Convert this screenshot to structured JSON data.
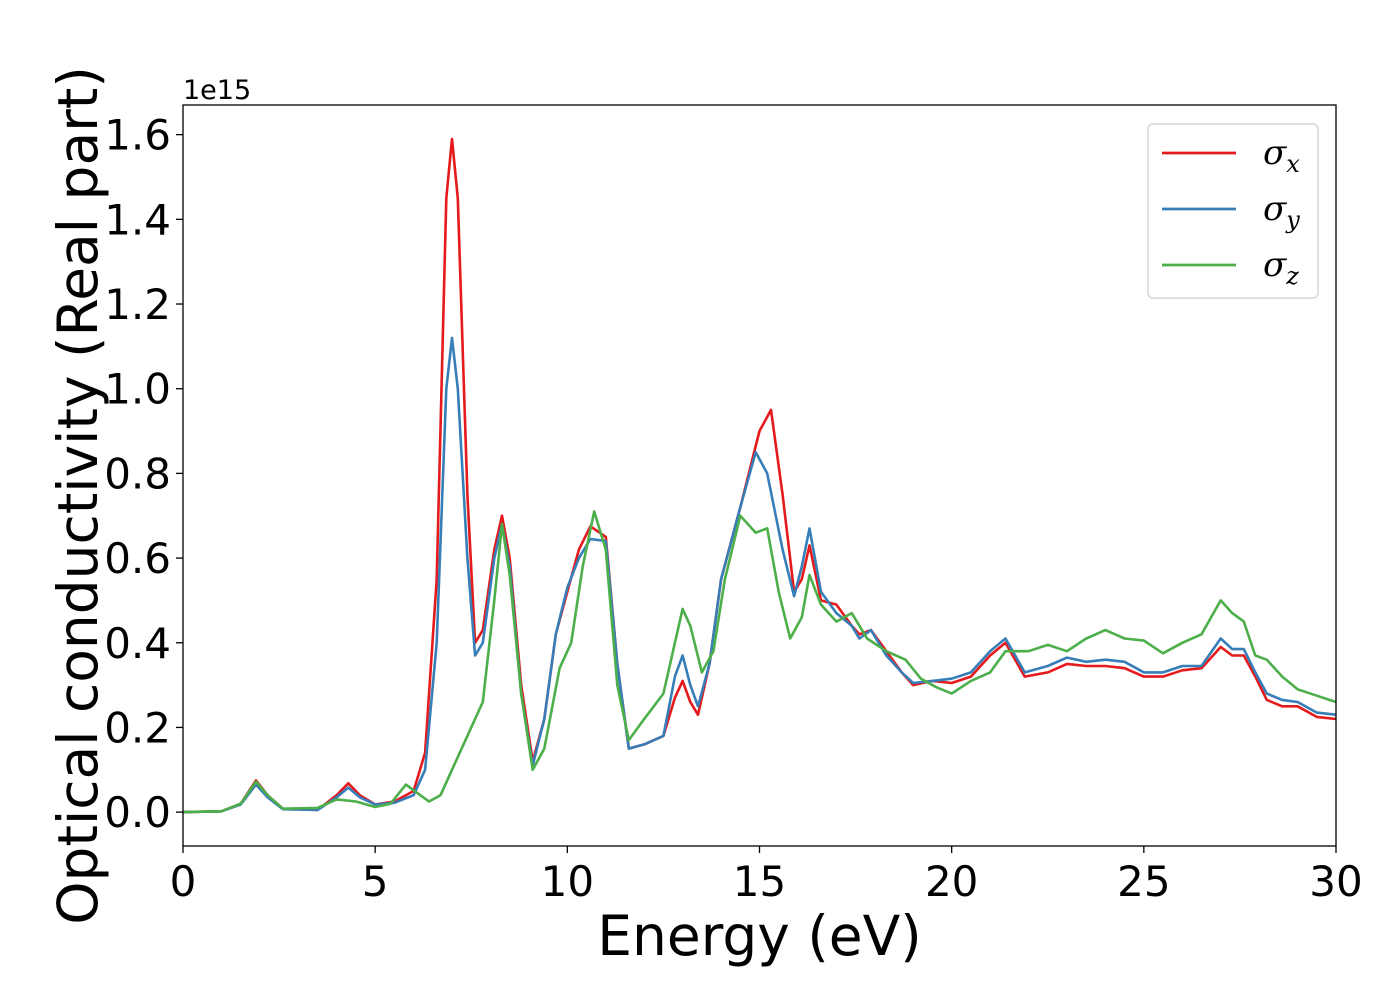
{
  "chart_data": {
    "type": "line",
    "xlabel": "Energy (eV)",
    "ylabel": "Optical conductivity (Real part)",
    "y_offset_text": "1e15",
    "y_multiplier": 1000000000000000.0,
    "xlim": [
      0,
      30
    ],
    "ylim": [
      -0.08,
      1.67
    ],
    "x_ticks": [
      0,
      5,
      10,
      15,
      20,
      25,
      30
    ],
    "x_tick_labels": [
      "0",
      "5",
      "10",
      "15",
      "20",
      "25",
      "30"
    ],
    "y_ticks": [
      0.0,
      0.2,
      0.4,
      0.6,
      0.8,
      1.0,
      1.2,
      1.4,
      1.6
    ],
    "y_tick_labels": [
      "0.0",
      "0.2",
      "0.4",
      "0.6",
      "0.8",
      "1.0",
      "1.2",
      "1.4",
      "1.6"
    ],
    "grid": false,
    "legend_position": "top-right",
    "series": [
      {
        "name": "σx",
        "symbol": "σ",
        "subscript": "x",
        "color": "#e41a1c",
        "points": [
          [
            0,
            0
          ],
          [
            1,
            0.002
          ],
          [
            1.5,
            0.02
          ],
          [
            1.9,
            0.075
          ],
          [
            2.2,
            0.04
          ],
          [
            2.6,
            0.008
          ],
          [
            3.5,
            0.005
          ],
          [
            4.0,
            0.04
          ],
          [
            4.3,
            0.068
          ],
          [
            4.6,
            0.04
          ],
          [
            5.0,
            0.018
          ],
          [
            5.5,
            0.025
          ],
          [
            6.0,
            0.05
          ],
          [
            6.3,
            0.14
          ],
          [
            6.6,
            0.55
          ],
          [
            6.85,
            1.45
          ],
          [
            7.0,
            1.59
          ],
          [
            7.15,
            1.45
          ],
          [
            7.4,
            0.75
          ],
          [
            7.6,
            0.4
          ],
          [
            7.8,
            0.43
          ],
          [
            8.1,
            0.62
          ],
          [
            8.3,
            0.7
          ],
          [
            8.5,
            0.6
          ],
          [
            8.8,
            0.3
          ],
          [
            9.1,
            0.12
          ],
          [
            9.4,
            0.22
          ],
          [
            9.7,
            0.42
          ],
          [
            10.0,
            0.52
          ],
          [
            10.3,
            0.62
          ],
          [
            10.6,
            0.675
          ],
          [
            11.0,
            0.65
          ],
          [
            11.3,
            0.35
          ],
          [
            11.6,
            0.15
          ],
          [
            12.0,
            0.16
          ],
          [
            12.5,
            0.18
          ],
          [
            12.8,
            0.27
          ],
          [
            13.0,
            0.31
          ],
          [
            13.2,
            0.26
          ],
          [
            13.4,
            0.23
          ],
          [
            13.7,
            0.35
          ],
          [
            14.0,
            0.55
          ],
          [
            14.5,
            0.72
          ],
          [
            15.0,
            0.9
          ],
          [
            15.3,
            0.95
          ],
          [
            15.6,
            0.75
          ],
          [
            15.9,
            0.52
          ],
          [
            16.1,
            0.55
          ],
          [
            16.3,
            0.63
          ],
          [
            16.6,
            0.5
          ],
          [
            17.0,
            0.49
          ],
          [
            17.4,
            0.44
          ],
          [
            17.6,
            0.42
          ],
          [
            17.9,
            0.43
          ],
          [
            18.3,
            0.38
          ],
          [
            18.7,
            0.33
          ],
          [
            19.0,
            0.3
          ],
          [
            19.5,
            0.31
          ],
          [
            20.0,
            0.305
          ],
          [
            20.5,
            0.32
          ],
          [
            21.0,
            0.37
          ],
          [
            21.4,
            0.4
          ],
          [
            21.9,
            0.32
          ],
          [
            22.5,
            0.33
          ],
          [
            23.0,
            0.35
          ],
          [
            23.5,
            0.345
          ],
          [
            24.0,
            0.345
          ],
          [
            24.5,
            0.34
          ],
          [
            25.0,
            0.32
          ],
          [
            25.5,
            0.32
          ],
          [
            26.0,
            0.335
          ],
          [
            26.5,
            0.34
          ],
          [
            27.0,
            0.39
          ],
          [
            27.3,
            0.37
          ],
          [
            27.6,
            0.37
          ],
          [
            27.9,
            0.32
          ],
          [
            28.2,
            0.265
          ],
          [
            28.6,
            0.25
          ],
          [
            29.0,
            0.25
          ],
          [
            29.5,
            0.225
          ],
          [
            30.0,
            0.22
          ]
        ]
      },
      {
        "name": "σy",
        "symbol": "σ",
        "subscript": "y",
        "color": "#377eb8",
        "points": [
          [
            0,
            0
          ],
          [
            1,
            0.002
          ],
          [
            1.5,
            0.018
          ],
          [
            1.9,
            0.065
          ],
          [
            2.2,
            0.035
          ],
          [
            2.6,
            0.007
          ],
          [
            3.5,
            0.005
          ],
          [
            4.0,
            0.035
          ],
          [
            4.3,
            0.058
          ],
          [
            4.6,
            0.035
          ],
          [
            5.0,
            0.018
          ],
          [
            5.5,
            0.022
          ],
          [
            6.0,
            0.04
          ],
          [
            6.3,
            0.1
          ],
          [
            6.6,
            0.4
          ],
          [
            6.85,
            1.0
          ],
          [
            7.0,
            1.12
          ],
          [
            7.15,
            1.0
          ],
          [
            7.4,
            0.6
          ],
          [
            7.6,
            0.37
          ],
          [
            7.8,
            0.4
          ],
          [
            8.1,
            0.6
          ],
          [
            8.3,
            0.68
          ],
          [
            8.5,
            0.58
          ],
          [
            8.8,
            0.28
          ],
          [
            9.1,
            0.11
          ],
          [
            9.4,
            0.22
          ],
          [
            9.7,
            0.42
          ],
          [
            10.0,
            0.53
          ],
          [
            10.3,
            0.6
          ],
          [
            10.6,
            0.645
          ],
          [
            11.0,
            0.64
          ],
          [
            11.3,
            0.35
          ],
          [
            11.6,
            0.15
          ],
          [
            12.0,
            0.16
          ],
          [
            12.5,
            0.18
          ],
          [
            12.8,
            0.32
          ],
          [
            13.0,
            0.37
          ],
          [
            13.2,
            0.3
          ],
          [
            13.4,
            0.25
          ],
          [
            13.7,
            0.35
          ],
          [
            14.0,
            0.55
          ],
          [
            14.5,
            0.72
          ],
          [
            14.9,
            0.85
          ],
          [
            15.2,
            0.8
          ],
          [
            15.6,
            0.62
          ],
          [
            15.9,
            0.51
          ],
          [
            16.1,
            0.58
          ],
          [
            16.3,
            0.67
          ],
          [
            16.6,
            0.52
          ],
          [
            17.0,
            0.47
          ],
          [
            17.4,
            0.44
          ],
          [
            17.6,
            0.41
          ],
          [
            17.9,
            0.43
          ],
          [
            18.3,
            0.37
          ],
          [
            18.7,
            0.33
          ],
          [
            19.0,
            0.305
          ],
          [
            19.5,
            0.31
          ],
          [
            20.0,
            0.315
          ],
          [
            20.5,
            0.33
          ],
          [
            21.0,
            0.38
          ],
          [
            21.4,
            0.41
          ],
          [
            21.9,
            0.33
          ],
          [
            22.5,
            0.345
          ],
          [
            23.0,
            0.365
          ],
          [
            23.5,
            0.355
          ],
          [
            24.0,
            0.36
          ],
          [
            24.5,
            0.355
          ],
          [
            25.0,
            0.33
          ],
          [
            25.5,
            0.33
          ],
          [
            26.0,
            0.345
          ],
          [
            26.5,
            0.345
          ],
          [
            27.0,
            0.41
          ],
          [
            27.3,
            0.385
          ],
          [
            27.6,
            0.385
          ],
          [
            27.9,
            0.33
          ],
          [
            28.2,
            0.28
          ],
          [
            28.6,
            0.265
          ],
          [
            29.0,
            0.26
          ],
          [
            29.5,
            0.235
          ],
          [
            30.0,
            0.23
          ]
        ]
      },
      {
        "name": "σz",
        "symbol": "σ",
        "subscript": "z",
        "color": "#4daf4a",
        "points": [
          [
            0,
            0
          ],
          [
            1,
            0.002
          ],
          [
            1.5,
            0.02
          ],
          [
            1.9,
            0.072
          ],
          [
            2.2,
            0.04
          ],
          [
            2.6,
            0.008
          ],
          [
            3.5,
            0.01
          ],
          [
            4.0,
            0.03
          ],
          [
            4.5,
            0.025
          ],
          [
            5.0,
            0.012
          ],
          [
            5.4,
            0.02
          ],
          [
            5.8,
            0.065
          ],
          [
            6.1,
            0.045
          ],
          [
            6.4,
            0.025
          ],
          [
            6.7,
            0.04
          ],
          [
            7.0,
            0.1
          ],
          [
            7.4,
            0.18
          ],
          [
            7.8,
            0.26
          ],
          [
            8.1,
            0.5
          ],
          [
            8.3,
            0.68
          ],
          [
            8.5,
            0.56
          ],
          [
            8.8,
            0.28
          ],
          [
            9.1,
            0.1
          ],
          [
            9.4,
            0.15
          ],
          [
            9.8,
            0.34
          ],
          [
            10.1,
            0.4
          ],
          [
            10.4,
            0.58
          ],
          [
            10.7,
            0.71
          ],
          [
            11.0,
            0.62
          ],
          [
            11.3,
            0.3
          ],
          [
            11.6,
            0.17
          ],
          [
            12.0,
            0.22
          ],
          [
            12.5,
            0.28
          ],
          [
            12.8,
            0.4
          ],
          [
            13.0,
            0.48
          ],
          [
            13.2,
            0.44
          ],
          [
            13.5,
            0.33
          ],
          [
            13.8,
            0.38
          ],
          [
            14.1,
            0.55
          ],
          [
            14.5,
            0.7
          ],
          [
            14.9,
            0.66
          ],
          [
            15.2,
            0.67
          ],
          [
            15.5,
            0.52
          ],
          [
            15.8,
            0.41
          ],
          [
            16.1,
            0.46
          ],
          [
            16.3,
            0.56
          ],
          [
            16.6,
            0.49
          ],
          [
            17.0,
            0.45
          ],
          [
            17.4,
            0.47
          ],
          [
            17.8,
            0.41
          ],
          [
            18.3,
            0.38
          ],
          [
            18.8,
            0.36
          ],
          [
            19.2,
            0.315
          ],
          [
            19.6,
            0.295
          ],
          [
            20.0,
            0.28
          ],
          [
            20.5,
            0.31
          ],
          [
            21.0,
            0.33
          ],
          [
            21.4,
            0.38
          ],
          [
            22.0,
            0.38
          ],
          [
            22.5,
            0.395
          ],
          [
            23.0,
            0.38
          ],
          [
            23.5,
            0.41
          ],
          [
            24.0,
            0.43
          ],
          [
            24.5,
            0.41
          ],
          [
            25.0,
            0.405
          ],
          [
            25.5,
            0.375
          ],
          [
            26.0,
            0.4
          ],
          [
            26.5,
            0.42
          ],
          [
            27.0,
            0.5
          ],
          [
            27.3,
            0.47
          ],
          [
            27.6,
            0.45
          ],
          [
            27.9,
            0.37
          ],
          [
            28.2,
            0.36
          ],
          [
            28.6,
            0.32
          ],
          [
            29.0,
            0.29
          ],
          [
            29.5,
            0.275
          ],
          [
            30.0,
            0.26
          ]
        ]
      }
    ]
  }
}
